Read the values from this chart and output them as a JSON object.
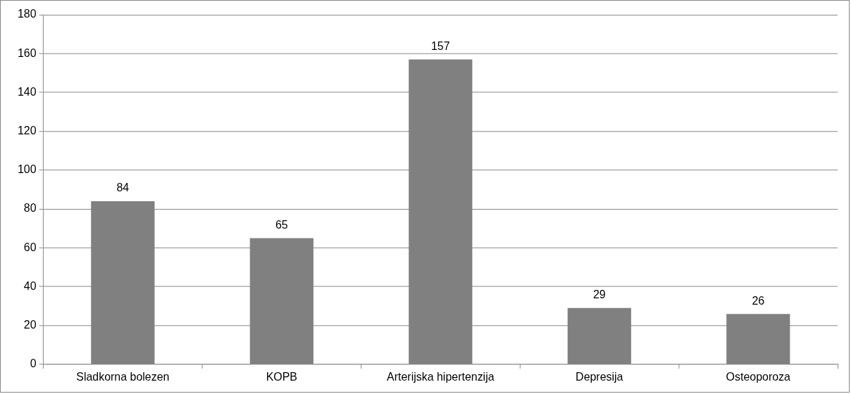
{
  "chart_data": {
    "type": "bar",
    "categories": [
      "Sladkorna bolezen",
      "KOPB",
      "Arterijska hipertenzija",
      "Depresija",
      "Osteoporoza"
    ],
    "values": [
      84,
      65,
      157,
      29,
      26
    ],
    "color": "#808080",
    "ylim": [
      0,
      180
    ],
    "yticks": [
      0,
      20,
      40,
      60,
      80,
      100,
      120,
      140,
      160,
      180
    ],
    "grid": "y",
    "data_labels": true
  }
}
